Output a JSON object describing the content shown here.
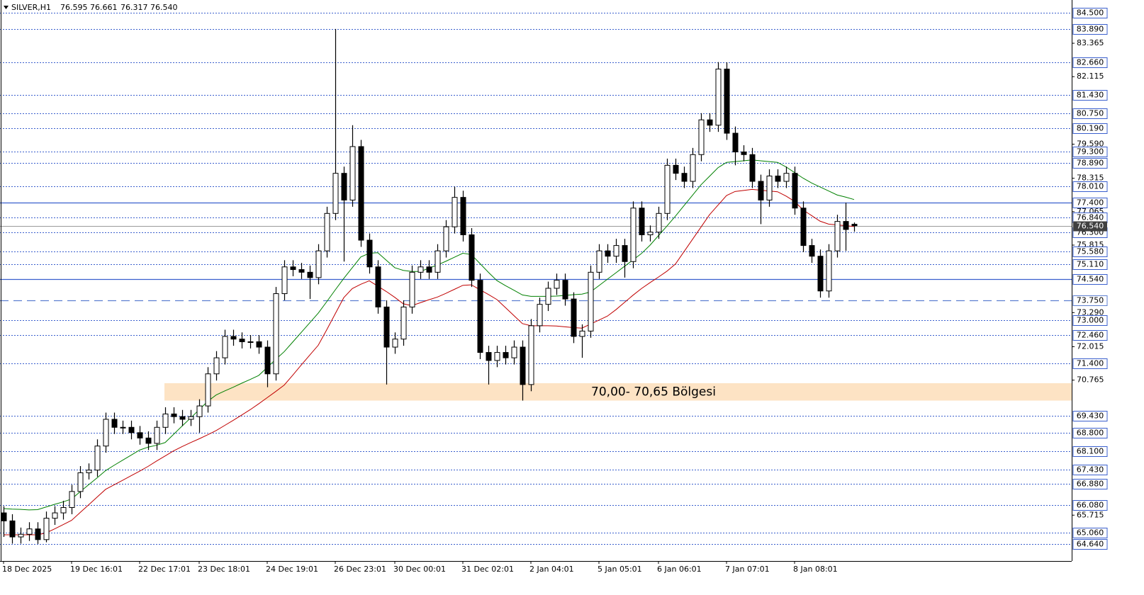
{
  "chart_data": {
    "type": "candlestick",
    "title": "SILVER,H1",
    "header_values": [
      "76.595",
      "76.661",
      "76.317",
      "76.540"
    ],
    "categories": [
      "18 Dec 2025",
      null,
      null,
      null,
      null,
      null,
      null,
      null,
      "19 Dec 16:01",
      null,
      null,
      null,
      null,
      null,
      null,
      null,
      "22 Dec 17:01",
      null,
      null,
      null,
      null,
      null,
      null,
      "23 Dec 18:01",
      null,
      null,
      null,
      null,
      null,
      null,
      null,
      "24 Dec 19:01",
      null,
      null,
      null,
      null,
      null,
      null,
      null,
      "26 Dec 23:01",
      null,
      null,
      null,
      null,
      null,
      null,
      "30 Dec 00:01",
      null,
      null,
      null,
      null,
      null,
      null,
      null,
      "31 Dec 02:01",
      null,
      null,
      null,
      null,
      null,
      null,
      null,
      "2 Jan 04:01",
      null,
      null,
      null,
      null,
      null,
      null,
      null,
      "5 Jan 05:01",
      null,
      null,
      null,
      null,
      null,
      null,
      "6 Jan 06:01",
      null,
      null,
      null,
      null,
      null,
      null,
      null,
      "7 Jan 07:01",
      null,
      null,
      null,
      null,
      null,
      null,
      null,
      "8 Jan 08:01",
      null,
      null,
      null,
      null,
      null,
      null,
      null
    ],
    "open": [
      65.8,
      65.5,
      64.9,
      65.0,
      65.2,
      64.8,
      65.6,
      65.8,
      66.0,
      66.6,
      67.3,
      67.4,
      68.3,
      69.3,
      69.0,
      69.0,
      68.8,
      68.6,
      68.4,
      69.0,
      69.5,
      69.4,
      69.3,
      69.4,
      69.8,
      71.0,
      71.6,
      72.4,
      72.3,
      72.2,
      72.2,
      72.0,
      71.0,
      74.0,
      75.0,
      74.9,
      74.8,
      74.6,
      75.6,
      77.0,
      78.5,
      77.5,
      79.5,
      76.0,
      75.0,
      73.5,
      72.0,
      72.3,
      73.5,
      74.8,
      75.0,
      74.8,
      75.6,
      76.5,
      77.6,
      76.2,
      74.5,
      71.8,
      71.5,
      71.8,
      71.6,
      72.0,
      70.6,
      72.8,
      73.6,
      74.2,
      74.5,
      73.8,
      72.4,
      72.6,
      74.8,
      75.6,
      75.4,
      75.8,
      75.2,
      77.2,
      76.2,
      76.3,
      77.0,
      78.8,
      78.5,
      78.2,
      79.2,
      80.5,
      80.3,
      82.4,
      80.0,
      79.3,
      79.2,
      78.2,
      77.5,
      78.4,
      78.2,
      78.5,
      77.2,
      75.8,
      75.4,
      74.1,
      75.6,
      76.7,
      76.595
    ],
    "high": [
      66.05,
      65.75,
      65.25,
      65.45,
      65.45,
      65.85,
      66.05,
      66.25,
      66.85,
      67.55,
      67.65,
      68.55,
      69.55,
      69.55,
      69.25,
      69.25,
      69.05,
      68.85,
      69.25,
      69.75,
      69.75,
      69.65,
      69.65,
      70.05,
      71.25,
      71.85,
      72.65,
      72.65,
      72.55,
      72.45,
      72.45,
      72.25,
      74.25,
      75.25,
      75.25,
      75.15,
      75.05,
      75.85,
      77.25,
      83.9,
      78.75,
      80.3,
      79.75,
      76.25,
      75.25,
      73.75,
      72.55,
      73.75,
      75.05,
      75.25,
      75.25,
      75.85,
      76.75,
      78.0,
      77.85,
      76.45,
      74.75,
      72.05,
      72.05,
      72.05,
      72.25,
      72.25,
      73.05,
      73.85,
      74.45,
      74.75,
      74.75,
      74.05,
      72.85,
      75.05,
      75.85,
      75.85,
      76.05,
      76.05,
      77.45,
      77.45,
      76.55,
      77.25,
      79.05,
      79.05,
      78.75,
      79.45,
      80.75,
      80.75,
      82.66,
      82.65,
      80.25,
      79.55,
      79.45,
      78.45,
      78.65,
      78.65,
      78.75,
      78.75,
      77.45,
      76.05,
      75.65,
      75.85,
      76.95,
      77.4,
      76.661
    ],
    "low": [
      64.9,
      64.65,
      64.65,
      64.75,
      64.64,
      64.7,
      65.35,
      65.55,
      65.75,
      66.35,
      67.05,
      67.15,
      68.05,
      68.75,
      68.75,
      68.55,
      68.35,
      68.15,
      68.15,
      68.75,
      69.15,
      69.05,
      69.05,
      68.8,
      69.55,
      70.75,
      71.35,
      72.05,
      71.95,
      71.95,
      71.75,
      70.5,
      70.75,
      73.75,
      74.65,
      74.55,
      73.8,
      74.35,
      75.35,
      76.75,
      75.2,
      77.25,
      75.75,
      74.75,
      73.25,
      70.6,
      71.75,
      72.05,
      73.25,
      74.55,
      74.55,
      74.55,
      75.35,
      76.25,
      75.95,
      74.25,
      71.55,
      70.6,
      71.25,
      71.35,
      71.35,
      70.0,
      70.35,
      72.55,
      73.35,
      73.95,
      73.55,
      72.15,
      71.6,
      72.35,
      74.55,
      75.15,
      75.15,
      74.6,
      74.95,
      75.95,
      75.95,
      76.05,
      76.75,
      78.25,
      77.95,
      77.95,
      78.95,
      80.05,
      80.05,
      79.75,
      78.8,
      78.95,
      77.95,
      76.6,
      77.25,
      77.95,
      77.95,
      76.95,
      75.55,
      75.15,
      73.85,
      73.85,
      75.35,
      75.6,
      76.317
    ],
    "close": [
      65.5,
      64.9,
      65.0,
      65.2,
      64.8,
      65.6,
      65.8,
      66.0,
      66.6,
      67.3,
      67.4,
      68.3,
      69.3,
      69.0,
      69.0,
      68.8,
      68.6,
      68.4,
      69.0,
      69.5,
      69.4,
      69.3,
      69.4,
      69.8,
      71.0,
      71.6,
      72.4,
      72.3,
      72.2,
      72.2,
      72.0,
      71.0,
      74.0,
      75.0,
      74.9,
      74.8,
      74.6,
      75.6,
      77.0,
      78.5,
      77.5,
      79.5,
      76.0,
      75.0,
      73.5,
      72.0,
      72.3,
      73.5,
      74.8,
      75.0,
      74.8,
      75.6,
      76.5,
      77.6,
      76.2,
      74.5,
      71.8,
      71.5,
      71.8,
      71.6,
      72.0,
      70.6,
      72.8,
      73.6,
      74.2,
      74.5,
      73.8,
      72.4,
      72.6,
      74.8,
      75.6,
      75.4,
      75.8,
      75.2,
      77.2,
      76.2,
      76.3,
      77.0,
      78.8,
      78.5,
      78.2,
      79.2,
      80.5,
      80.3,
      82.4,
      80.0,
      79.3,
      79.2,
      78.2,
      77.5,
      78.4,
      78.2,
      78.5,
      77.2,
      75.8,
      75.4,
      74.1,
      75.6,
      76.7,
      76.4,
      76.54
    ],
    "overlays": [
      {
        "color": "#008000",
        "values": [
          65.96,
          65.94,
          65.93,
          65.91,
          65.92,
          66.02,
          66.12,
          66.21,
          66.32,
          66.59,
          66.85,
          67.11,
          67.38,
          67.58,
          67.77,
          67.96,
          68.15,
          68.26,
          68.33,
          68.43,
          68.74,
          69.05,
          69.35,
          69.66,
          69.97,
          70.21,
          70.36,
          70.5,
          70.65,
          70.79,
          70.94,
          71.24,
          71.54,
          71.83,
          72.19,
          72.55,
          72.91,
          73.27,
          73.7,
          74.14,
          74.57,
          74.97,
          75.37,
          75.51,
          75.53,
          75.25,
          74.97,
          74.87,
          74.83,
          74.83,
          74.95,
          75.07,
          75.21,
          75.36,
          75.51,
          75.46,
          75.13,
          74.8,
          74.49,
          74.3,
          74.13,
          73.95,
          73.9,
          73.9,
          73.9,
          73.91,
          73.93,
          73.96,
          73.98,
          74.06,
          74.3,
          74.54,
          74.78,
          75.02,
          75.26,
          75.5,
          75.81,
          76.17,
          76.53,
          76.9,
          77.29,
          77.68,
          78.07,
          78.39,
          78.71,
          78.91,
          78.94,
          78.97,
          79.0,
          78.97,
          78.94,
          78.91,
          78.74,
          78.53,
          78.32,
          78.14,
          77.99,
          77.84,
          77.69,
          77.61,
          77.52
        ]
      },
      {
        "color": "#c00000",
        "values": [
          64.98,
          64.98,
          64.98,
          64.98,
          64.98,
          65.05,
          65.2,
          65.36,
          65.52,
          65.81,
          66.1,
          66.39,
          66.68,
          66.85,
          67.02,
          67.19,
          67.36,
          67.54,
          67.74,
          67.93,
          68.12,
          68.28,
          68.43,
          68.57,
          68.72,
          68.88,
          69.07,
          69.26,
          69.46,
          69.66,
          69.88,
          70.11,
          70.34,
          70.58,
          70.95,
          71.33,
          71.7,
          72.07,
          72.65,
          73.25,
          73.85,
          74.19,
          74.35,
          74.48,
          74.28,
          74.08,
          73.86,
          73.62,
          73.55,
          73.66,
          73.77,
          73.87,
          74.01,
          74.16,
          74.31,
          74.33,
          74.15,
          73.97,
          73.78,
          73.48,
          73.18,
          72.88,
          72.8,
          72.8,
          72.8,
          72.79,
          72.76,
          72.73,
          72.71,
          72.86,
          73.01,
          73.16,
          73.4,
          73.67,
          73.94,
          74.19,
          74.41,
          74.62,
          74.84,
          75.11,
          75.57,
          76.03,
          76.49,
          76.95,
          77.31,
          77.67,
          77.82,
          77.86,
          77.9,
          77.87,
          77.84,
          77.81,
          77.65,
          77.45,
          77.13,
          76.92,
          76.71,
          76.6,
          76.57,
          76.54,
          76.51
        ]
      }
    ],
    "ylim": [
      64.0,
      84.85
    ],
    "yticks": [
      {
        "value": 83.365,
        "label": "83.365"
      },
      {
        "value": 82.115,
        "label": "82.115"
      },
      {
        "value": 79.59,
        "label": "79.590"
      },
      {
        "value": 78.315,
        "label": "78.315"
      },
      {
        "value": 77.065,
        "label": "77.065"
      },
      {
        "value": 75.815,
        "label": "75.815"
      },
      {
        "value": 73.29,
        "label": "73.290"
      },
      {
        "value": 72.015,
        "label": "72.015"
      },
      {
        "value": 70.765,
        "label": "70.765"
      },
      {
        "value": 65.715,
        "label": "65.715"
      }
    ],
    "levels": [
      {
        "value": 84.5,
        "label": "84.500",
        "style": "dotted"
      },
      {
        "value": 83.89,
        "label": "83.890",
        "style": "dotted"
      },
      {
        "value": 82.66,
        "label": "82.660",
        "style": "dotted"
      },
      {
        "value": 81.43,
        "label": "81.430",
        "style": "dotted"
      },
      {
        "value": 80.75,
        "label": "80.750",
        "style": "dotted"
      },
      {
        "value": 80.19,
        "label": "80.190",
        "style": "dotted"
      },
      {
        "value": 79.3,
        "label": "79.300",
        "style": "dotted"
      },
      {
        "value": 78.89,
        "label": "78.890",
        "style": "dotted"
      },
      {
        "value": 78.01,
        "label": "78.010",
        "style": "dotted"
      },
      {
        "value": 77.4,
        "label": "77.400",
        "style": "solid"
      },
      {
        "value": 76.84,
        "label": "76.840",
        "style": "dotted"
      },
      {
        "value": 76.3,
        "label": "76.300",
        "style": "dotted"
      },
      {
        "value": 75.58,
        "label": "75.580",
        "style": "dotted"
      },
      {
        "value": 75.11,
        "label": "75.110",
        "style": "dotted"
      },
      {
        "value": 74.54,
        "label": "74.540",
        "style": "solid"
      },
      {
        "value": 73.75,
        "label": "73.750",
        "style": "dashed"
      },
      {
        "value": 73.0,
        "label": "73.000",
        "style": "dotted"
      },
      {
        "value": 72.46,
        "label": "72.460",
        "style": "dotted"
      },
      {
        "value": 71.4,
        "label": "71.400",
        "style": "dotted"
      },
      {
        "value": 69.43,
        "label": "69.430",
        "style": "dotted"
      },
      {
        "value": 68.8,
        "label": "68.800",
        "style": "dotted"
      },
      {
        "value": 68.1,
        "label": "68.100",
        "style": "dotted"
      },
      {
        "value": 67.43,
        "label": "67.430",
        "style": "dotted"
      },
      {
        "value": 66.88,
        "label": "66.880",
        "style": "dotted"
      },
      {
        "value": 66.08,
        "label": "66.080",
        "style": "dotted"
      },
      {
        "value": 65.06,
        "label": "65.060",
        "style": "dotted"
      },
      {
        "value": 64.64,
        "label": "64.640",
        "style": "dotted"
      }
    ],
    "last_price": {
      "value": 76.54,
      "label": "76.540"
    },
    "zone": {
      "from": 70.0,
      "to": 70.65,
      "label": "70,00- 70,65 Bölgesi",
      "color": "#fde3c4"
    }
  }
}
